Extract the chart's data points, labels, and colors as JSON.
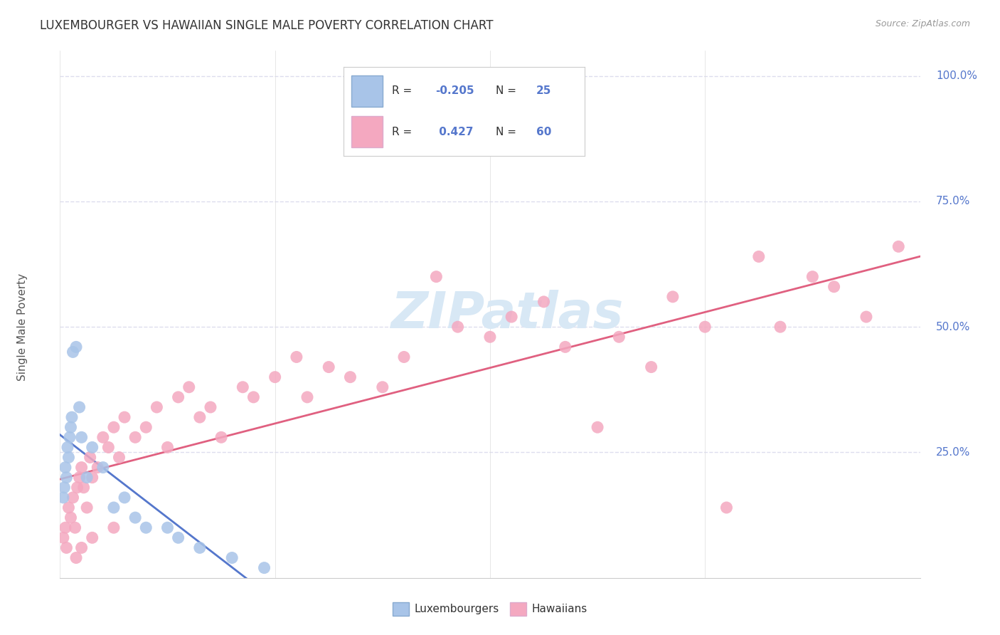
{
  "title": "LUXEMBOURGER VS HAWAIIAN SINGLE MALE POVERTY CORRELATION CHART",
  "source": "Source: ZipAtlas.com",
  "ylabel": "Single Male Poverty",
  "xlim": [
    0.0,
    80.0
  ],
  "ylim": [
    0.0,
    105.0
  ],
  "ytick_values": [
    0,
    25,
    50,
    75,
    100
  ],
  "ytick_labels": [
    "",
    "25.0%",
    "50.0%",
    "75.0%",
    "100.0%"
  ],
  "grid_color": "#ddddee",
  "background_color": "#ffffff",
  "watermark_text": "ZIPatlas",
  "watermark_color": "#d8e8f5",
  "lux_color": "#a8c4e8",
  "haw_color": "#f4a8c0",
  "lux_R": -0.205,
  "lux_N": 25,
  "haw_R": 0.427,
  "haw_N": 60,
  "trend_lux_color": "#5577cc",
  "trend_lux_style": "-",
  "trend_haw_color": "#e06080",
  "trend_haw_style": "-",
  "trend_dash_color": "#aabbdd",
  "axis_label_color": "#5577cc",
  "title_color": "#333333",
  "source_color": "#999999",
  "ylabel_color": "#555555",
  "lux_points_x": [
    0.3,
    0.4,
    0.5,
    0.6,
    0.7,
    0.8,
    0.9,
    1.0,
    1.1,
    1.2,
    1.5,
    1.8,
    2.0,
    2.5,
    3.0,
    4.0,
    5.0,
    6.0,
    7.0,
    8.0,
    10.0,
    11.0,
    13.0,
    16.0,
    19.0
  ],
  "lux_points_y": [
    16,
    18,
    22,
    20,
    26,
    24,
    28,
    30,
    32,
    45,
    46,
    34,
    28,
    20,
    26,
    22,
    14,
    16,
    12,
    10,
    10,
    8,
    6,
    4,
    2
  ],
  "haw_points_x": [
    0.3,
    0.5,
    0.6,
    0.8,
    1.0,
    1.2,
    1.4,
    1.6,
    1.8,
    2.0,
    2.2,
    2.5,
    2.8,
    3.0,
    3.5,
    4.0,
    4.5,
    5.0,
    5.5,
    6.0,
    7.0,
    8.0,
    9.0,
    10.0,
    11.0,
    12.0,
    13.0,
    14.0,
    15.0,
    17.0,
    18.0,
    20.0,
    22.0,
    23.0,
    25.0,
    27.0,
    30.0,
    32.0,
    35.0,
    37.0,
    40.0,
    42.0,
    45.0,
    47.0,
    50.0,
    52.0,
    55.0,
    57.0,
    60.0,
    62.0,
    65.0,
    67.0,
    70.0,
    72.0,
    75.0,
    78.0,
    1.5,
    2.0,
    3.0,
    5.0
  ],
  "haw_points_y": [
    8,
    10,
    6,
    14,
    12,
    16,
    10,
    18,
    20,
    22,
    18,
    14,
    24,
    20,
    22,
    28,
    26,
    30,
    24,
    32,
    28,
    30,
    34,
    26,
    36,
    38,
    32,
    34,
    28,
    38,
    36,
    40,
    44,
    36,
    42,
    40,
    38,
    44,
    60,
    50,
    48,
    52,
    55,
    46,
    30,
    48,
    42,
    56,
    50,
    14,
    64,
    50,
    60,
    58,
    52,
    66,
    4,
    6,
    8,
    10
  ]
}
